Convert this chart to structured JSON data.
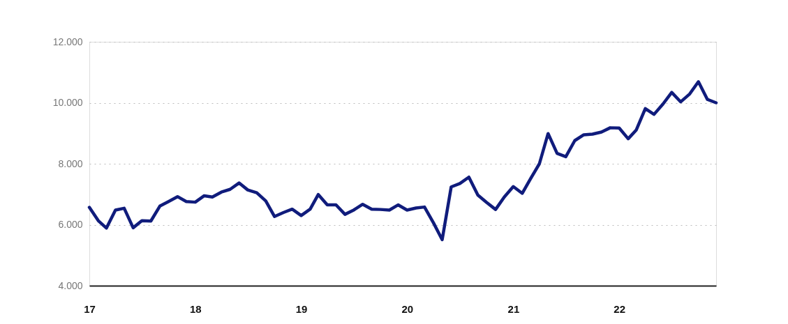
{
  "chart_data": {
    "type": "line",
    "x": [
      "2017-01",
      "2017-02",
      "2017-03",
      "2017-04",
      "2017-05",
      "2017-06",
      "2017-07",
      "2017-08",
      "2017-09",
      "2017-10",
      "2017-11",
      "2017-12",
      "2018-01",
      "2018-02",
      "2018-03",
      "2018-04",
      "2018-05",
      "2018-06",
      "2018-07",
      "2018-08",
      "2018-09",
      "2018-10",
      "2018-11",
      "2018-12",
      "2019-01",
      "2019-02",
      "2019-03",
      "2019-04",
      "2019-05",
      "2019-06",
      "2019-07",
      "2019-08",
      "2019-09",
      "2019-10",
      "2019-11",
      "2019-12",
      "2020-01",
      "2020-02",
      "2020-03",
      "2020-04",
      "2020-05",
      "2020-06",
      "2020-07",
      "2020-08",
      "2020-09",
      "2020-10",
      "2020-11",
      "2020-12",
      "2021-01",
      "2021-02",
      "2021-03",
      "2021-04",
      "2021-05",
      "2021-06",
      "2021-07",
      "2021-08",
      "2021-09",
      "2021-10",
      "2021-11",
      "2021-12",
      "2022-01",
      "2022-02",
      "2022-03",
      "2022-04",
      "2022-05",
      "2022-06",
      "2022-07",
      "2022-08",
      "2022-09",
      "2022-10",
      "2022-11",
      "2022-12"
    ],
    "series": [
      {
        "color": "#101c7c",
        "values": [
          6570,
          6130,
          5890,
          6480,
          6540,
          5900,
          6130,
          6120,
          6610,
          6760,
          6920,
          6760,
          6740,
          6950,
          6910,
          7070,
          7160,
          7370,
          7140,
          7050,
          6780,
          6270,
          6400,
          6510,
          6300,
          6510,
          6990,
          6650,
          6650,
          6340,
          6480,
          6670,
          6510,
          6500,
          6480,
          6650,
          6480,
          6550,
          6580,
          6060,
          5510,
          7240,
          7350,
          7560,
          6970,
          6730,
          6500,
          6910,
          7250,
          7030,
          7500,
          8000,
          8990,
          8340,
          8230,
          8760,
          8950,
          8970,
          9040,
          9180,
          9170,
          8820,
          9110,
          9810,
          9620,
          9960,
          10340,
          10030,
          10290,
          10690,
          10110,
          10000
        ]
      }
    ],
    "ylim": [
      4000,
      12000
    ],
    "yticks": [
      {
        "value": 4000,
        "label": "4.000"
      },
      {
        "value": 6000,
        "label": "6.000"
      },
      {
        "value": 8000,
        "label": "8.000"
      },
      {
        "value": 10000,
        "label": "10.000"
      },
      {
        "value": 12000,
        "label": "12.000"
      }
    ],
    "xlim": [
      "2017-01",
      "2022-12"
    ],
    "xticks": [
      {
        "value": "2017-01",
        "label": "17"
      },
      {
        "value": "2018-01",
        "label": "18"
      },
      {
        "value": "2019-01",
        "label": "19"
      },
      {
        "value": "2020-01",
        "label": "20"
      },
      {
        "value": "2021-01",
        "label": "21"
      },
      {
        "value": "2022-01",
        "label": "22"
      }
    ],
    "grid": "y",
    "marker": "none",
    "line_style": "solid"
  }
}
